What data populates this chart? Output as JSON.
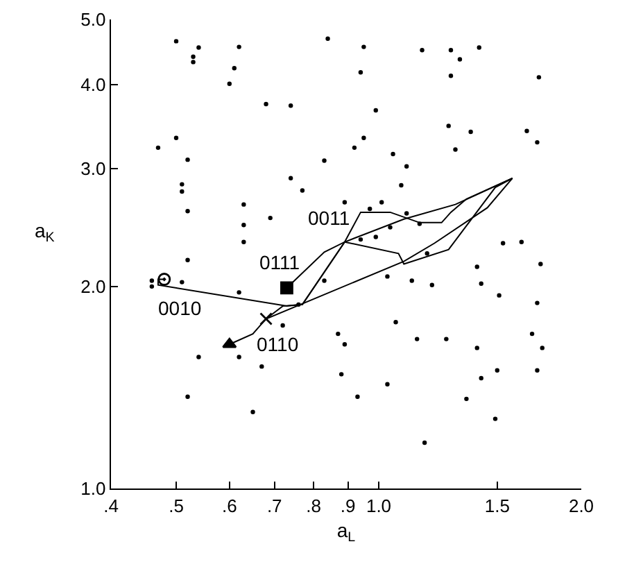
{
  "chart_data": {
    "type": "scatter",
    "xlabel": "a$_{L}$",
    "ylabel": "a$_{K}$",
    "log": "xy",
    "xlim": [
      0.4,
      2.0
    ],
    "ylim": [
      1.0,
      5.0
    ],
    "xticks": [
      {
        "value": 0.4,
        "label": ".4"
      },
      {
        "value": 0.5,
        "label": ".5"
      },
      {
        "value": 0.6,
        "label": ".6"
      },
      {
        "value": 0.7,
        "label": ".7"
      },
      {
        "value": 0.8,
        "label": ".8"
      },
      {
        "value": 0.9,
        "label": ".9"
      },
      {
        "value": 1.0,
        "label": "1.0"
      },
      {
        "value": 1.5,
        "label": "1.5"
      },
      {
        "value": 2.0,
        "label": "2.0"
      }
    ],
    "yticks": [
      {
        "value": 1.0,
        "label": "1.0"
      },
      {
        "value": 2.0,
        "label": "2.0"
      },
      {
        "value": 3.0,
        "label": "3.0"
      },
      {
        "value": 4.0,
        "label": "4.0"
      },
      {
        "value": 5.0,
        "label": "5.0"
      }
    ],
    "series": [
      {
        "marker": "circle",
        "color": "#000000",
        "x": [
          0.5,
          0.54,
          0.53,
          0.53,
          0.62,
          0.61,
          0.6,
          0.84,
          0.95,
          0.94,
          1.16,
          1.28,
          1.41,
          1.32,
          1.28,
          1.73,
          0.68,
          0.74,
          0.99,
          0.5,
          0.47,
          0.52,
          1.27,
          1.37,
          1.66,
          1.72,
          1.3,
          0.95,
          0.92,
          1.05,
          0.83,
          1.1,
          0.51,
          0.51,
          0.74,
          0.77,
          1.08,
          0.52,
          0.63,
          0.63,
          0.69,
          0.89,
          0.97,
          1.01,
          1.1,
          1.04,
          1.15,
          0.63,
          0.52,
          0.51,
          0.46,
          0.46,
          0.62,
          0.72,
          0.76,
          0.83,
          0.94,
          0.99,
          1.03,
          1.12,
          1.2,
          1.18,
          1.53,
          1.63,
          1.4,
          1.74,
          1.42,
          1.51,
          1.72,
          1.06,
          0.87,
          0.89,
          1.14,
          1.26,
          1.4,
          1.69,
          1.75,
          0.54,
          0.62,
          0.67,
          0.88,
          1.03,
          1.5,
          1.42,
          1.72,
          0.52,
          0.93,
          0.65,
          1.35,
          1.49,
          1.17
        ],
        "values": [
          4.64,
          4.54,
          4.4,
          4.32,
          4.55,
          4.23,
          4.01,
          4.68,
          4.55,
          4.17,
          4.5,
          4.5,
          4.54,
          4.36,
          4.12,
          4.1,
          3.74,
          3.72,
          3.66,
          3.33,
          3.22,
          3.09,
          3.47,
          3.4,
          3.41,
          3.28,
          3.2,
          3.33,
          3.22,
          3.15,
          3.08,
          3.02,
          2.84,
          2.77,
          2.9,
          2.78,
          2.83,
          2.59,
          2.65,
          2.47,
          2.53,
          2.67,
          2.61,
          2.67,
          2.57,
          2.45,
          2.48,
          2.33,
          2.19,
          2.03,
          2.04,
          2.0,
          1.96,
          1.75,
          1.88,
          2.04,
          2.35,
          2.37,
          2.07,
          2.04,
          2.01,
          2.24,
          2.32,
          2.33,
          2.14,
          2.16,
          2.02,
          1.94,
          1.89,
          1.77,
          1.7,
          1.64,
          1.67,
          1.67,
          1.62,
          1.7,
          1.62,
          1.57,
          1.57,
          1.52,
          1.48,
          1.43,
          1.5,
          1.46,
          1.5,
          1.37,
          1.37,
          1.3,
          1.36,
          1.27,
          1.17
        ]
      },
      {
        "name": "0011",
        "type": "line",
        "line_style": "solid",
        "color": "#000000",
        "x": [
          0.68,
          0.72,
          0.77,
          0.89,
          0.94,
          1.04,
          1.15,
          1.24,
          1.28,
          1.35,
          1.58
        ],
        "values": [
          1.79,
          1.87,
          1.88,
          2.33,
          2.58,
          2.58,
          2.49,
          2.49,
          2.58,
          2.7,
          2.9
        ]
      },
      {
        "name": "0111",
        "type": "line",
        "line_style": "solid",
        "color": "#000000",
        "x": [
          0.73,
          0.83,
          0.89,
          1.07,
          1.09,
          1.27,
          1.49,
          1.58
        ],
        "values": [
          1.99,
          2.25,
          2.33,
          2.24,
          2.16,
          2.27,
          2.81,
          2.9
        ]
      },
      {
        "name": "0010",
        "type": "line",
        "line_style": "solid",
        "color": "#000000",
        "x": [
          0.48,
          0.47,
          0.47,
          0.73,
          0.77,
          0.89,
          1.09,
          1.3,
          1.58
        ],
        "values": [
          2.05,
          2.05,
          2.01,
          1.87,
          1.88,
          2.33,
          2.52,
          2.65,
          2.9
        ]
      },
      {
        "name": "0110",
        "type": "line",
        "line_style": "solid",
        "color": "#000000",
        "x": [
          0.6,
          0.65,
          0.68,
          1.09,
          1.21,
          1.45,
          1.58
        ],
        "values": [
          1.64,
          1.7,
          1.79,
          2.18,
          2.32,
          2.62,
          2.9
        ]
      },
      {
        "type": "scatter",
        "marker": "circle",
        "color": "#000000",
        "x": [
          0.48
        ],
        "values": [
          2.05
        ]
      },
      {
        "type": "scatter",
        "marker": "square",
        "color": "#000000",
        "x": [
          0.73
        ],
        "values": [
          1.99
        ]
      },
      {
        "type": "scatter",
        "marker": "triangle",
        "color": "#000000",
        "x": [
          0.6
        ],
        "values": [
          1.64
        ]
      },
      {
        "type": "scatter",
        "marker": "cross",
        "color": "#000000",
        "x": [
          0.68
        ],
        "values": [
          1.79
        ]
      }
    ]
  }
}
